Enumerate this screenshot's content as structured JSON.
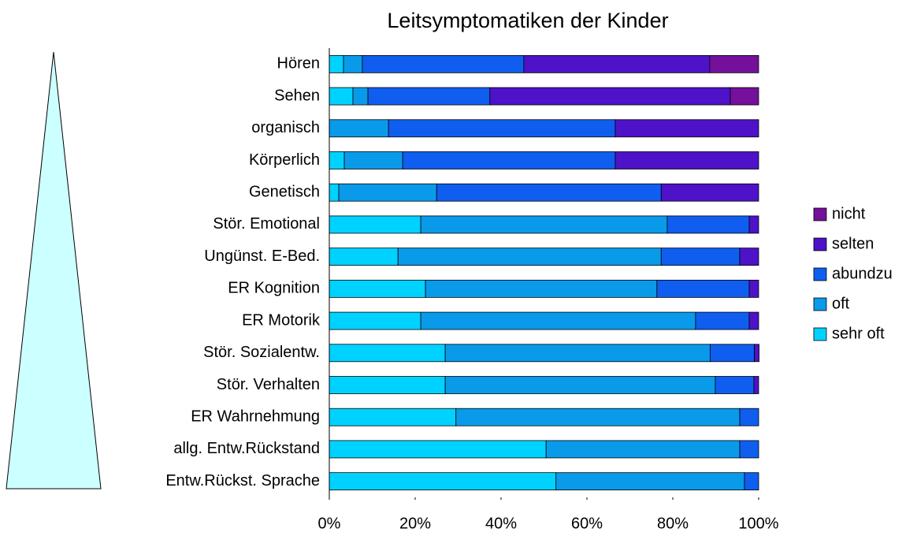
{
  "chart_data": {
    "type": "stacked-barh",
    "title": "Leitsymptomatiken der Kinder",
    "categories": [
      "Hören",
      "Sehen",
      "organisch",
      "Körperlich",
      "Genetisch",
      "Stör. Emotional",
      "Ungünst. E-Bed.",
      "ER Kognition",
      "ER Motorik",
      "Stör. Sozialentw.",
      "Stör. Verhalten",
      "ER Wahrnehmung",
      "allg. Entw.Rückstand",
      "Entw.Rückst. Sprache"
    ],
    "series": [
      {
        "name": "sehr oft",
        "color": "#00d2ff",
        "values": [
          3.3,
          5.5,
          0,
          3.5,
          2.2,
          21.3,
          16,
          22.4,
          21.3,
          27,
          27,
          29.5,
          50.5,
          52.8
        ]
      },
      {
        "name": "oft",
        "color": "#0a9aea",
        "values": [
          4.4,
          3.5,
          13.8,
          13.6,
          22.8,
          57.4,
          61.3,
          53.9,
          64,
          61.7,
          62.9,
          66.1,
          45.1,
          43.9
        ]
      },
      {
        "name": "abundzu",
        "color": "#0f5ef0",
        "values": [
          37.6,
          28.4,
          52.8,
          49.5,
          52.3,
          19.1,
          18.3,
          21.5,
          12.5,
          10.3,
          9,
          4.4,
          4.4,
          3.3
        ]
      },
      {
        "name": "selten",
        "color": "#4e12c8",
        "values": [
          43.3,
          56,
          33.4,
          33.4,
          22.7,
          2.2,
          4.4,
          2.2,
          2.2,
          1.1,
          1.1,
          0,
          0,
          0
        ]
      },
      {
        "name": "nicht",
        "color": "#74109a",
        "values": [
          11.4,
          6.6,
          0,
          0,
          0,
          0,
          0,
          0,
          0,
          0,
          0,
          0,
          0,
          0
        ]
      }
    ],
    "xlim": [
      0,
      100
    ],
    "xticks": [
      {
        "value": 0,
        "label": "0%"
      },
      {
        "value": 20,
        "label": "20%"
      },
      {
        "value": 40,
        "label": "40%"
      },
      {
        "value": 60,
        "label": "60%"
      },
      {
        "value": 80,
        "label": "80%"
      },
      {
        "value": 100,
        "label": "100%"
      }
    ],
    "legend": "right"
  }
}
